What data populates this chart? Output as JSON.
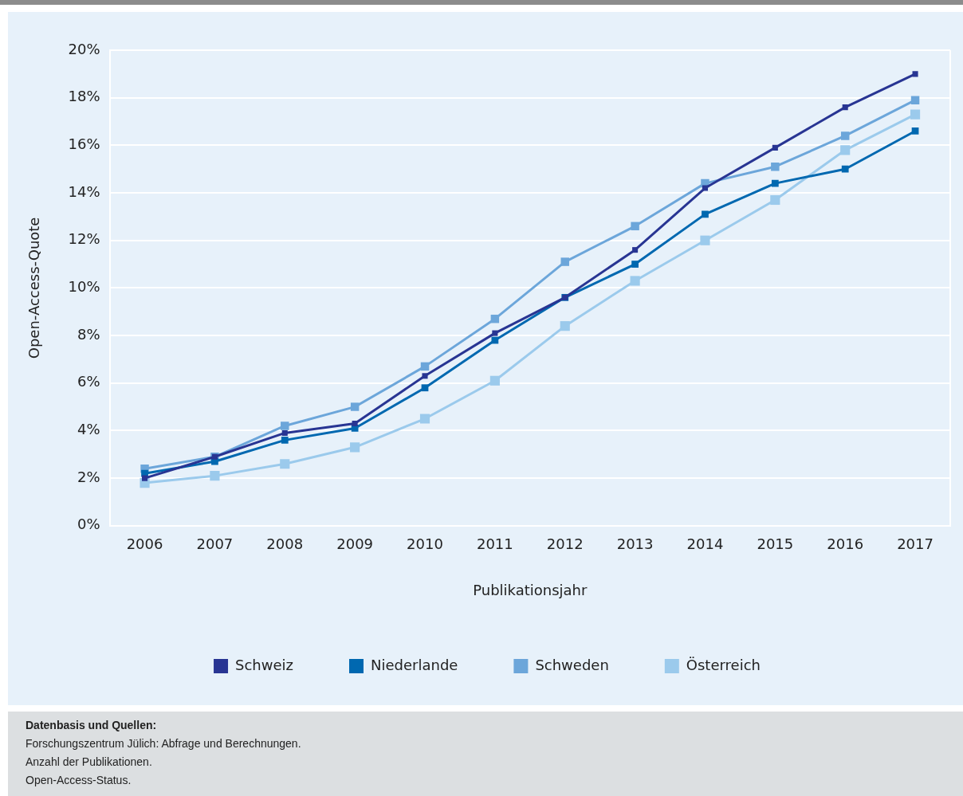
{
  "chart_data": {
    "type": "line",
    "xlabel": "Publikationsjahr",
    "ylabel": "Open-Access-Quote",
    "categories": [
      "2006",
      "2007",
      "2008",
      "2009",
      "2010",
      "2011",
      "2012",
      "2013",
      "2014",
      "2015",
      "2016",
      "2017"
    ],
    "series": [
      {
        "name": "Schweiz",
        "color": "#283593",
        "values": [
          2.0,
          2.9,
          3.9,
          4.3,
          6.3,
          8.1,
          9.6,
          11.6,
          14.2,
          15.9,
          17.6,
          19.0
        ]
      },
      {
        "name": "Niederlande",
        "color": "#0068b0",
        "values": [
          2.2,
          2.7,
          3.6,
          4.1,
          5.8,
          7.8,
          9.6,
          11.0,
          13.1,
          14.4,
          15.0,
          16.6
        ]
      },
      {
        "name": "Schweden",
        "color": "#6ca6da",
        "values": [
          2.4,
          2.9,
          4.2,
          5.0,
          6.7,
          8.7,
          11.1,
          12.6,
          14.4,
          15.1,
          16.4,
          17.9
        ]
      },
      {
        "name": "Österreich",
        "color": "#9bcaec",
        "values": [
          1.8,
          2.1,
          2.6,
          3.3,
          4.5,
          6.1,
          8.4,
          10.3,
          12.0,
          13.7,
          15.8,
          17.3
        ]
      }
    ],
    "ylim": [
      0,
      20
    ],
    "yticks": [
      {
        "value": 0,
        "label": "0%"
      },
      {
        "value": 2,
        "label": "2%"
      },
      {
        "value": 4,
        "label": "4%"
      },
      {
        "value": 6,
        "label": "6%"
      },
      {
        "value": 8,
        "label": "8%"
      },
      {
        "value": 10,
        "label": "10%"
      },
      {
        "value": 12,
        "label": "12%"
      },
      {
        "value": 14,
        "label": "14%"
      },
      {
        "value": 16,
        "label": "16%"
      },
      {
        "value": 18,
        "label": "18%"
      },
      {
        "value": 20,
        "label": "20%"
      }
    ],
    "grid": "y",
    "legend": "bottom",
    "marker": "square",
    "line_style": "solid",
    "annotations": [
      "Datenbasis und Quellen:",
      "Forschungszentrum Jülich: Abfrage und Berechnungen.",
      "Anzahl der Publikationen.",
      "Open-Access-Status."
    ]
  }
}
